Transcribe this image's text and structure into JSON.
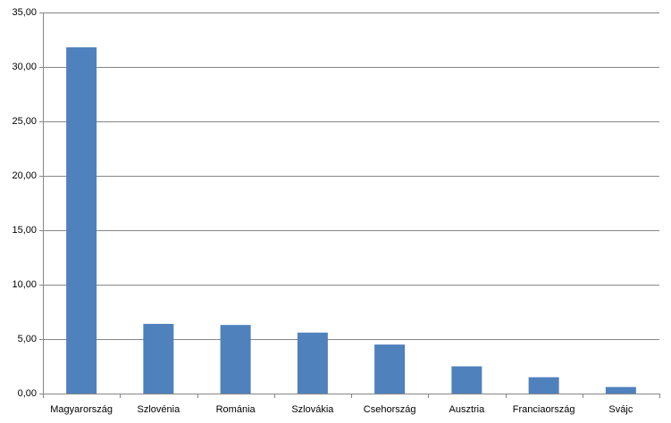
{
  "chart_data": {
    "type": "bar",
    "categories": [
      "Magyarország",
      "Szlovénia",
      "Románia",
      "Szlovákia",
      "Csehország",
      "Ausztria",
      "Franciaország",
      "Svájc"
    ],
    "values": [
      31.8,
      6.4,
      6.3,
      5.6,
      4.5,
      2.5,
      1.5,
      0.6
    ],
    "color": "#4f81bd",
    "ylim": [
      0,
      35
    ],
    "yticks": [
      {
        "value": 0,
        "label": "0,00"
      },
      {
        "value": 5,
        "label": "5,00"
      },
      {
        "value": 10,
        "label": "10,00"
      },
      {
        "value": 15,
        "label": "15,00"
      },
      {
        "value": 20,
        "label": "20,00"
      },
      {
        "value": 25,
        "label": "25,00"
      },
      {
        "value": 30,
        "label": "30,00"
      },
      {
        "value": 35,
        "label": "35,00"
      }
    ],
    "grid": true
  }
}
